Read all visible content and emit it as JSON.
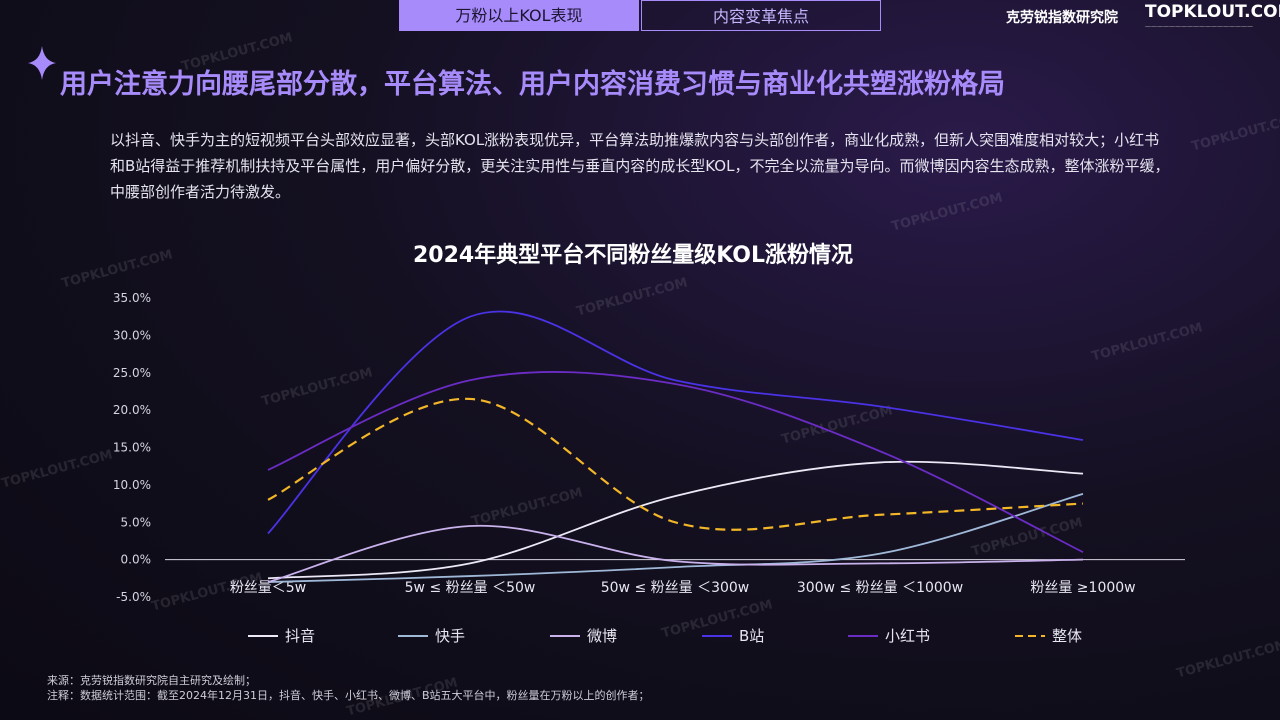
{
  "nav": {
    "tab_active": "万粉以上KOL表现",
    "tab_inactive": "内容变革焦点"
  },
  "brand": {
    "name_cn": "克劳锐指数研究院",
    "logo_text": "TOPKLOUT.COM"
  },
  "headline": "用户注意力向腰尾部分散，平台算法、用户内容消费习惯与商业化共塑涨粉格局",
  "intro_text": "以抖音、快手为主的短视频平台头部效应显著，头部KOL涨粉表现优异，平台算法助推爆款内容与头部创作者，商业化成熟，但新人突围难度相对较大；小红书和B站得益于推荐机制扶持及平台属性，用户偏好分散，更关注实用性与垂直内容的成长型KOL，不完全以流量为导向。而微博因内容生态成熟，整体涨粉平缓，中腰部创作者活力待激发。",
  "colors": {
    "accent": "#a78bfa",
    "douyin": "#ece8f6",
    "kuaishou": "#9fb8d8",
    "weibo": "#c9b2ec",
    "bilibili": "#4a32e6",
    "xiaohongshu": "#6a2cc4",
    "overall": "#f2b627"
  },
  "chart_data": {
    "type": "line",
    "title": "2024年典型平台不同粉丝量级KOL涨粉情况",
    "categories": [
      "粉丝量＜5w",
      "5w ≤ 粉丝量 ＜50w",
      "50w ≤ 粉丝量 ＜300w",
      "300w ≤ 粉丝量 ＜1000w",
      "粉丝量 ≥1000w"
    ],
    "y_ticks": [
      "35.0%",
      "30.0%",
      "25.0%",
      "20.0%",
      "15.0%",
      "10.0%",
      "5.0%",
      "0.0%",
      "-5.0%"
    ],
    "ylim": [
      -5,
      35
    ],
    "smooth": true,
    "legend_position": "bottom",
    "series": [
      {
        "name": "抖音",
        "color_key": "douyin",
        "dash": false,
        "values": [
          -2.5,
          -0.5,
          8.5,
          13.0,
          11.5
        ]
      },
      {
        "name": "快手",
        "color_key": "kuaishou",
        "dash": false,
        "values": [
          -3.0,
          -2.2,
          -1.0,
          0.8,
          8.8
        ]
      },
      {
        "name": "微博",
        "color_key": "weibo",
        "dash": false,
        "values": [
          -3.0,
          4.5,
          -0.2,
          -0.5,
          0.0
        ]
      },
      {
        "name": "B站",
        "color_key": "bilibili",
        "dash": false,
        "values": [
          3.5,
          32.5,
          24.0,
          20.5,
          16.0
        ]
      },
      {
        "name": "小红书",
        "color_key": "xiaohongshu",
        "dash": false,
        "values": [
          12.0,
          24.0,
          23.5,
          14.5,
          1.0
        ]
      },
      {
        "name": "整体",
        "color_key": "overall",
        "dash": true,
        "values": [
          8.0,
          21.5,
          5.0,
          6.0,
          7.5
        ]
      }
    ]
  },
  "footnotes": {
    "source": "来源：克劳锐指数研究院自主研究及绘制；",
    "note": "注释：数据统计范围：截至2024年12月31日，抖音、快手、小红书、微博、B站五大平台中，粉丝量在万粉以上的创作者；"
  }
}
